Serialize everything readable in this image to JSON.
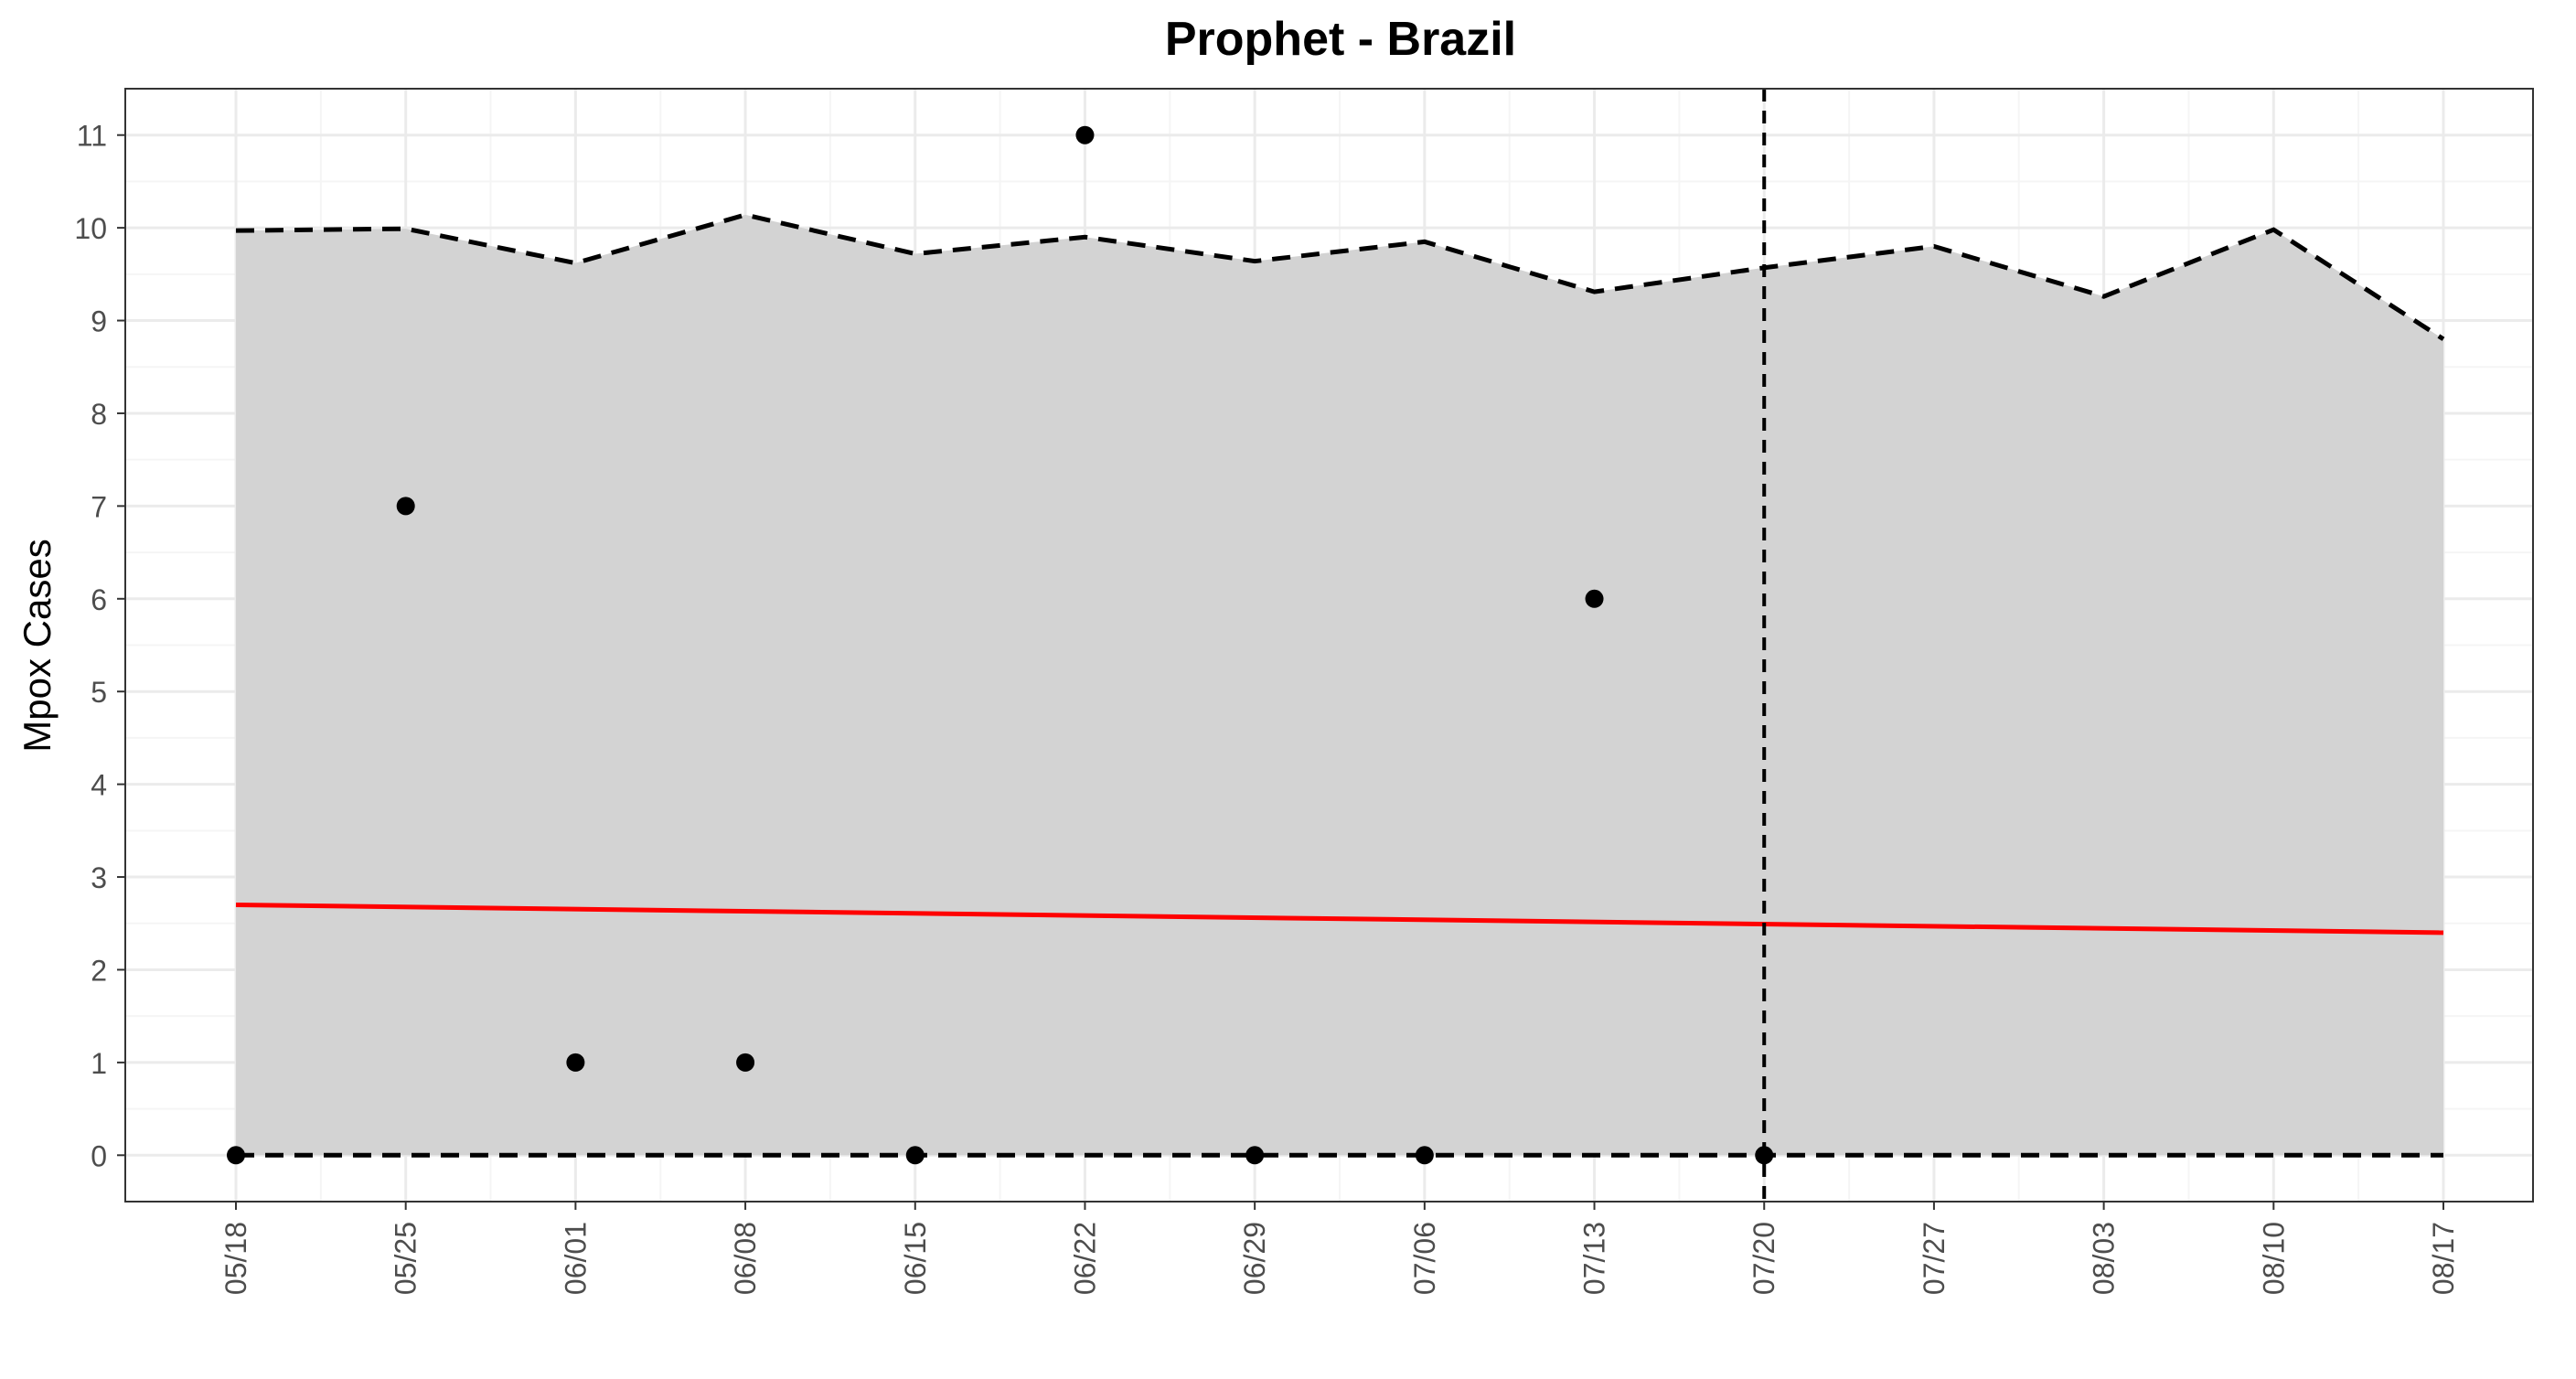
{
  "chart_data": {
    "type": "line",
    "title": "Prophet - Brazil",
    "xlabel": "",
    "ylabel": "Mpox Cases",
    "x_tick_labels": [
      "05/18",
      "05/25",
      "06/01",
      "06/08",
      "06/15",
      "06/22",
      "06/29",
      "07/06",
      "07/13",
      "07/20",
      "07/27",
      "08/03",
      "08/10",
      "08/17"
    ],
    "y_ticks": [
      0,
      1,
      2,
      3,
      4,
      5,
      6,
      7,
      8,
      9,
      10,
      11
    ],
    "ylim": [
      -0.5,
      11.5
    ],
    "grid": true,
    "legend": "none",
    "vline_at": "07/20",
    "series": [
      {
        "name": "",
        "kind": "points",
        "x": [
          "05/18",
          "05/25",
          "06/01",
          "06/08",
          "06/15",
          "06/22",
          "06/29",
          "07/06",
          "07/13",
          "07/20"
        ],
        "values": [
          0,
          7,
          1,
          1,
          0,
          11,
          0,
          0,
          6,
          0
        ]
      },
      {
        "name": "",
        "kind": "line",
        "x": [
          "05/18",
          "08/17"
        ],
        "values": [
          2.7,
          2.4
        ]
      },
      {
        "name": "",
        "kind": "band",
        "x": [
          "05/18",
          "05/25",
          "06/01",
          "06/08",
          "06/15",
          "06/22",
          "06/29",
          "07/06",
          "07/13",
          "07/20",
          "07/27",
          "08/03",
          "08/10",
          "08/17"
        ],
        "upper": [
          9.97,
          9.99,
          9.62,
          10.14,
          9.72,
          9.9,
          9.64,
          9.85,
          9.31,
          9.57,
          9.8,
          9.26,
          9.98,
          8.8
        ],
        "lower": [
          0,
          0,
          0,
          0,
          0,
          0,
          0,
          0,
          0,
          0,
          0,
          0,
          0,
          0
        ]
      }
    ],
    "colors": {
      "band_fill": "#d3d3d3",
      "trend_line": "#ff0000",
      "bounds_line": "#000000",
      "points": "#000000",
      "grid_major": "#ebebeb",
      "grid_minor": "#f5f5f5",
      "panel_border": "#333333",
      "tick_text": "#4d4d4d"
    }
  }
}
